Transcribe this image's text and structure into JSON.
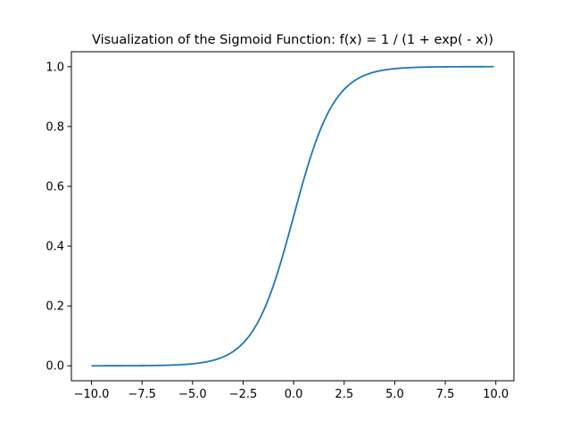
{
  "chart_data": {
    "type": "line",
    "title": "Visualization of the Sigmoid Function: f(x) = 1 / (1 + exp( - x))",
    "xlabel": "",
    "ylabel": "",
    "function": "1 / (1 + exp(-x))",
    "x_start": -10,
    "x_end": 9.9,
    "x_step": 0.1,
    "xlim": [
      -10.995,
      10.895
    ],
    "ylim": [
      -0.04995,
      1.04995
    ],
    "x_ticks": [
      -10,
      -7.5,
      -5,
      -2.5,
      0,
      2.5,
      5,
      7.5,
      10
    ],
    "x_tick_labels": [
      "−10.0",
      "−7.5",
      "−5.0",
      "−2.5",
      "0.0",
      "2.5",
      "5.0",
      "7.5",
      "10.0"
    ],
    "y_ticks": [
      0,
      0.2,
      0.4,
      0.6,
      0.8,
      1.0
    ],
    "y_tick_labels": [
      "0.0",
      "0.2",
      "0.4",
      "0.6",
      "0.8",
      "1.0"
    ],
    "grid": false,
    "legend": "none",
    "series": [
      {
        "color": "#1f77b4"
      }
    ]
  }
}
